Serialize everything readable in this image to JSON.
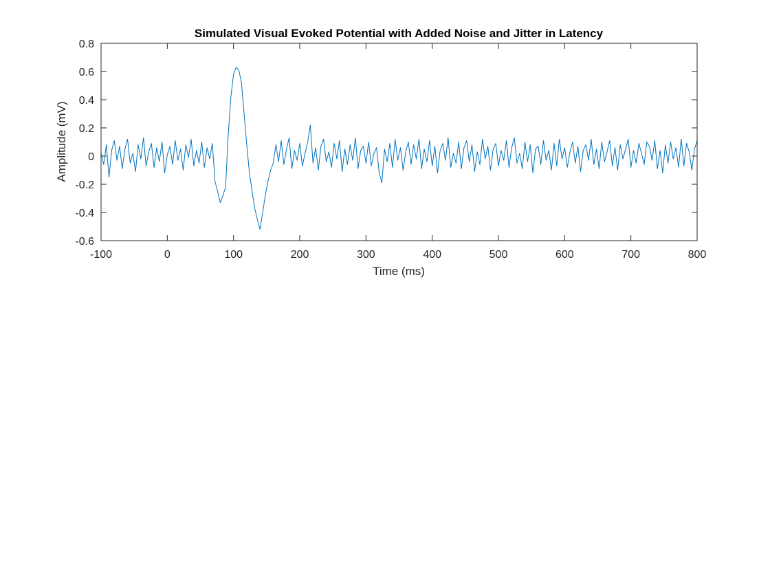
{
  "chart_data": {
    "type": "line",
    "title": "Simulated Visual Evoked Potential with Added Noise and Jitter in Latency",
    "xlabel": "Time (ms)",
    "ylabel": "Amplitude (mV)",
    "xlim": [
      -100,
      800
    ],
    "ylim": [
      -0.6,
      0.8
    ],
    "xticks": [
      -100,
      0,
      100,
      200,
      300,
      400,
      500,
      600,
      700,
      800
    ],
    "yticks": [
      -0.6,
      -0.4,
      -0.2,
      0,
      0.2,
      0.4,
      0.6,
      0.8
    ],
    "xtick_labels": [
      "-100",
      "0",
      "100",
      "200",
      "300",
      "400",
      "500",
      "600",
      "700",
      "800"
    ],
    "ytick_labels": [
      "-0.6",
      "-0.4",
      "-0.2",
      "0",
      "0.2",
      "0.4",
      "0.6",
      "0.8"
    ],
    "grid": false,
    "line_color": "#0072BD",
    "series": [
      {
        "x": [
          -100,
          -96,
          -92,
          -88,
          -84,
          -80,
          -76,
          -72,
          -68,
          -64,
          -60,
          -56,
          -52,
          -48,
          -44,
          -40,
          -36,
          -32,
          -28,
          -24,
          -20,
          -16,
          -12,
          -8,
          -4,
          0,
          4,
          8,
          12,
          16,
          20,
          24,
          28,
          32,
          36,
          40,
          44,
          48,
          52,
          56,
          60,
          64,
          68,
          72,
          76,
          80,
          84,
          88,
          92,
          96,
          100,
          104,
          108,
          112,
          116,
          120,
          124,
          128,
          132,
          136,
          140,
          144,
          148,
          152,
          156,
          160,
          164,
          168,
          172,
          176,
          180,
          184,
          188,
          192,
          196,
          200,
          204,
          208,
          212,
          216,
          220,
          224,
          228,
          232,
          236,
          240,
          244,
          248,
          252,
          256,
          260,
          264,
          268,
          272,
          276,
          280,
          284,
          288,
          292,
          296,
          300,
          304,
          308,
          312,
          316,
          320,
          324,
          328,
          332,
          336,
          340,
          344,
          348,
          352,
          356,
          360,
          364,
          368,
          372,
          376,
          380,
          384,
          388,
          392,
          396,
          400,
          404,
          408,
          412,
          416,
          420,
          424,
          428,
          432,
          436,
          440,
          444,
          448,
          452,
          456,
          460,
          464,
          468,
          472,
          476,
          480,
          484,
          488,
          492,
          496,
          500,
          504,
          508,
          512,
          516,
          520,
          524,
          528,
          532,
          536,
          540,
          544,
          548,
          552,
          556,
          560,
          564,
          568,
          572,
          576,
          580,
          584,
          588,
          592,
          596,
          600,
          604,
          608,
          612,
          616,
          620,
          624,
          628,
          632,
          636,
          640,
          644,
          648,
          652,
          656,
          660,
          664,
          668,
          672,
          676,
          680,
          684,
          688,
          692,
          696,
          700,
          704,
          708,
          712,
          716,
          720,
          724,
          728,
          732,
          736,
          740,
          744,
          748,
          752,
          756,
          760,
          764,
          768,
          772,
          776,
          780,
          784,
          788,
          792,
          796,
          800
        ],
        "y": [
          0.02,
          -0.06,
          0.08,
          -0.15,
          0.04,
          0.11,
          -0.03,
          0.07,
          -0.09,
          0.05,
          0.12,
          -0.05,
          0.02,
          -0.11,
          0.08,
          -0.02,
          0.13,
          -0.07,
          0.03,
          0.09,
          -0.08,
          0.06,
          -0.04,
          0.1,
          -0.12,
          0.01,
          0.07,
          -0.06,
          0.11,
          -0.03,
          0.05,
          -0.1,
          0.08,
          -0.01,
          0.12,
          -0.07,
          0.04,
          -0.05,
          0.1,
          -0.08,
          0.06,
          -0.02,
          0.09,
          -0.18,
          -0.25,
          -0.33,
          -0.28,
          -0.22,
          0.15,
          0.42,
          0.58,
          0.63,
          0.61,
          0.52,
          0.3,
          0.08,
          -0.12,
          -0.25,
          -0.37,
          -0.45,
          -0.52,
          -0.4,
          -0.28,
          -0.18,
          -0.1,
          -0.05,
          0.08,
          -0.04,
          0.11,
          -0.06,
          0.05,
          0.13,
          -0.09,
          0.04,
          -0.03,
          0.09,
          -0.07,
          0.02,
          0.1,
          0.22,
          -0.05,
          0.06,
          -0.1,
          0.07,
          0.12,
          -0.04,
          0.03,
          -0.08,
          0.09,
          -0.02,
          0.11,
          -0.11,
          0.05,
          -0.06,
          0.08,
          -0.03,
          0.13,
          -0.09,
          0.04,
          0.07,
          -0.05,
          0.1,
          -0.07,
          0.02,
          0.06,
          -0.12,
          -0.19,
          0.05,
          -0.04,
          0.09,
          -0.08,
          0.12,
          -0.03,
          0.06,
          -0.1,
          0.03,
          0.1,
          -0.06,
          0.08,
          -0.02,
          0.12,
          -0.09,
          0.05,
          -0.04,
          0.11,
          -0.07,
          0.07,
          -0.12,
          0.04,
          0.09,
          -0.03,
          0.13,
          -0.08,
          0.02,
          -0.05,
          0.1,
          -0.09,
          0.06,
          0.11,
          -0.04,
          0.08,
          -0.11,
          0.03,
          -0.06,
          0.12,
          -0.02,
          0.07,
          -0.1,
          0.05,
          0.09,
          -0.07,
          0.04,
          -0.03,
          0.11,
          -0.08,
          0.06,
          0.13,
          -0.05,
          0.02,
          -0.09,
          0.1,
          -0.04,
          0.08,
          -0.12,
          0.05,
          0.07,
          -0.06,
          0.11,
          -0.03,
          0.04,
          -0.1,
          0.09,
          -0.07,
          0.12,
          -0.02,
          0.06,
          -0.08,
          0.03,
          0.1,
          -0.05,
          0.07,
          -0.11,
          0.04,
          0.08,
          -0.03,
          0.12,
          -0.06,
          0.05,
          -0.09,
          0.1,
          -0.04,
          0.03,
          0.11,
          -0.07,
          0.06,
          -0.1,
          0.08,
          -0.02,
          0.05,
          0.12,
          -0.08,
          0.04,
          -0.05,
          0.09,
          0.02,
          -0.06,
          0.1,
          0.07,
          -0.03,
          0.11,
          -0.09,
          0.04,
          -0.12,
          0.08,
          -0.05,
          0.1,
          -0.02,
          0.06,
          -0.08,
          0.12,
          -0.07,
          0.09,
          0.03,
          -0.1,
          0.05,
          0.11
        ]
      }
    ]
  }
}
